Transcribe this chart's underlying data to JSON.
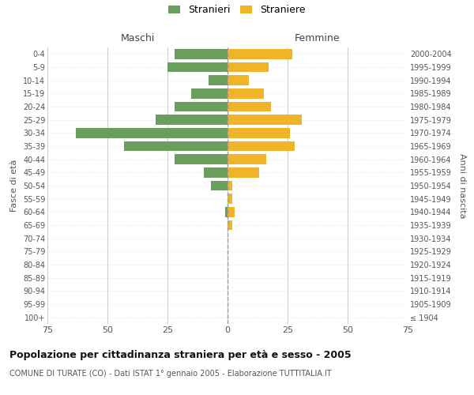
{
  "age_groups": [
    "100+",
    "95-99",
    "90-94",
    "85-89",
    "80-84",
    "75-79",
    "70-74",
    "65-69",
    "60-64",
    "55-59",
    "50-54",
    "45-49",
    "40-44",
    "35-39",
    "30-34",
    "25-29",
    "20-24",
    "15-19",
    "10-14",
    "5-9",
    "0-4"
  ],
  "birth_years": [
    "≤ 1904",
    "1905-1909",
    "1910-1914",
    "1915-1919",
    "1920-1924",
    "1925-1929",
    "1930-1934",
    "1935-1939",
    "1940-1944",
    "1945-1949",
    "1950-1954",
    "1955-1959",
    "1960-1964",
    "1965-1969",
    "1970-1974",
    "1975-1979",
    "1980-1984",
    "1985-1989",
    "1990-1994",
    "1995-1999",
    "2000-2004"
  ],
  "males": [
    0,
    0,
    0,
    0,
    0,
    0,
    0,
    0,
    1,
    0,
    7,
    10,
    22,
    43,
    63,
    30,
    22,
    15,
    8,
    25,
    22
  ],
  "females": [
    0,
    0,
    0,
    0,
    0,
    0,
    0,
    2,
    3,
    2,
    2,
    13,
    16,
    28,
    26,
    31,
    18,
    15,
    9,
    17,
    27
  ],
  "male_color": "#6a9e5e",
  "female_color": "#f0b429",
  "title": "Popolazione per cittadinanza straniera per età e sesso - 2005",
  "subtitle": "COMUNE DI TURATE (CO) - Dati ISTAT 1° gennaio 2005 - Elaborazione TUTTITALIA.IT",
  "xlabel_left": "Maschi",
  "xlabel_right": "Femmine",
  "ylabel_left": "Fasce di età",
  "ylabel_right": "Anni di nascita",
  "legend_male": "Stranieri",
  "legend_female": "Straniere",
  "xlim": 75,
  "background_color": "#ffffff",
  "grid_color": "#cccccc",
  "grid_color_y": "#dddddd",
  "center_line_color": "#999999"
}
